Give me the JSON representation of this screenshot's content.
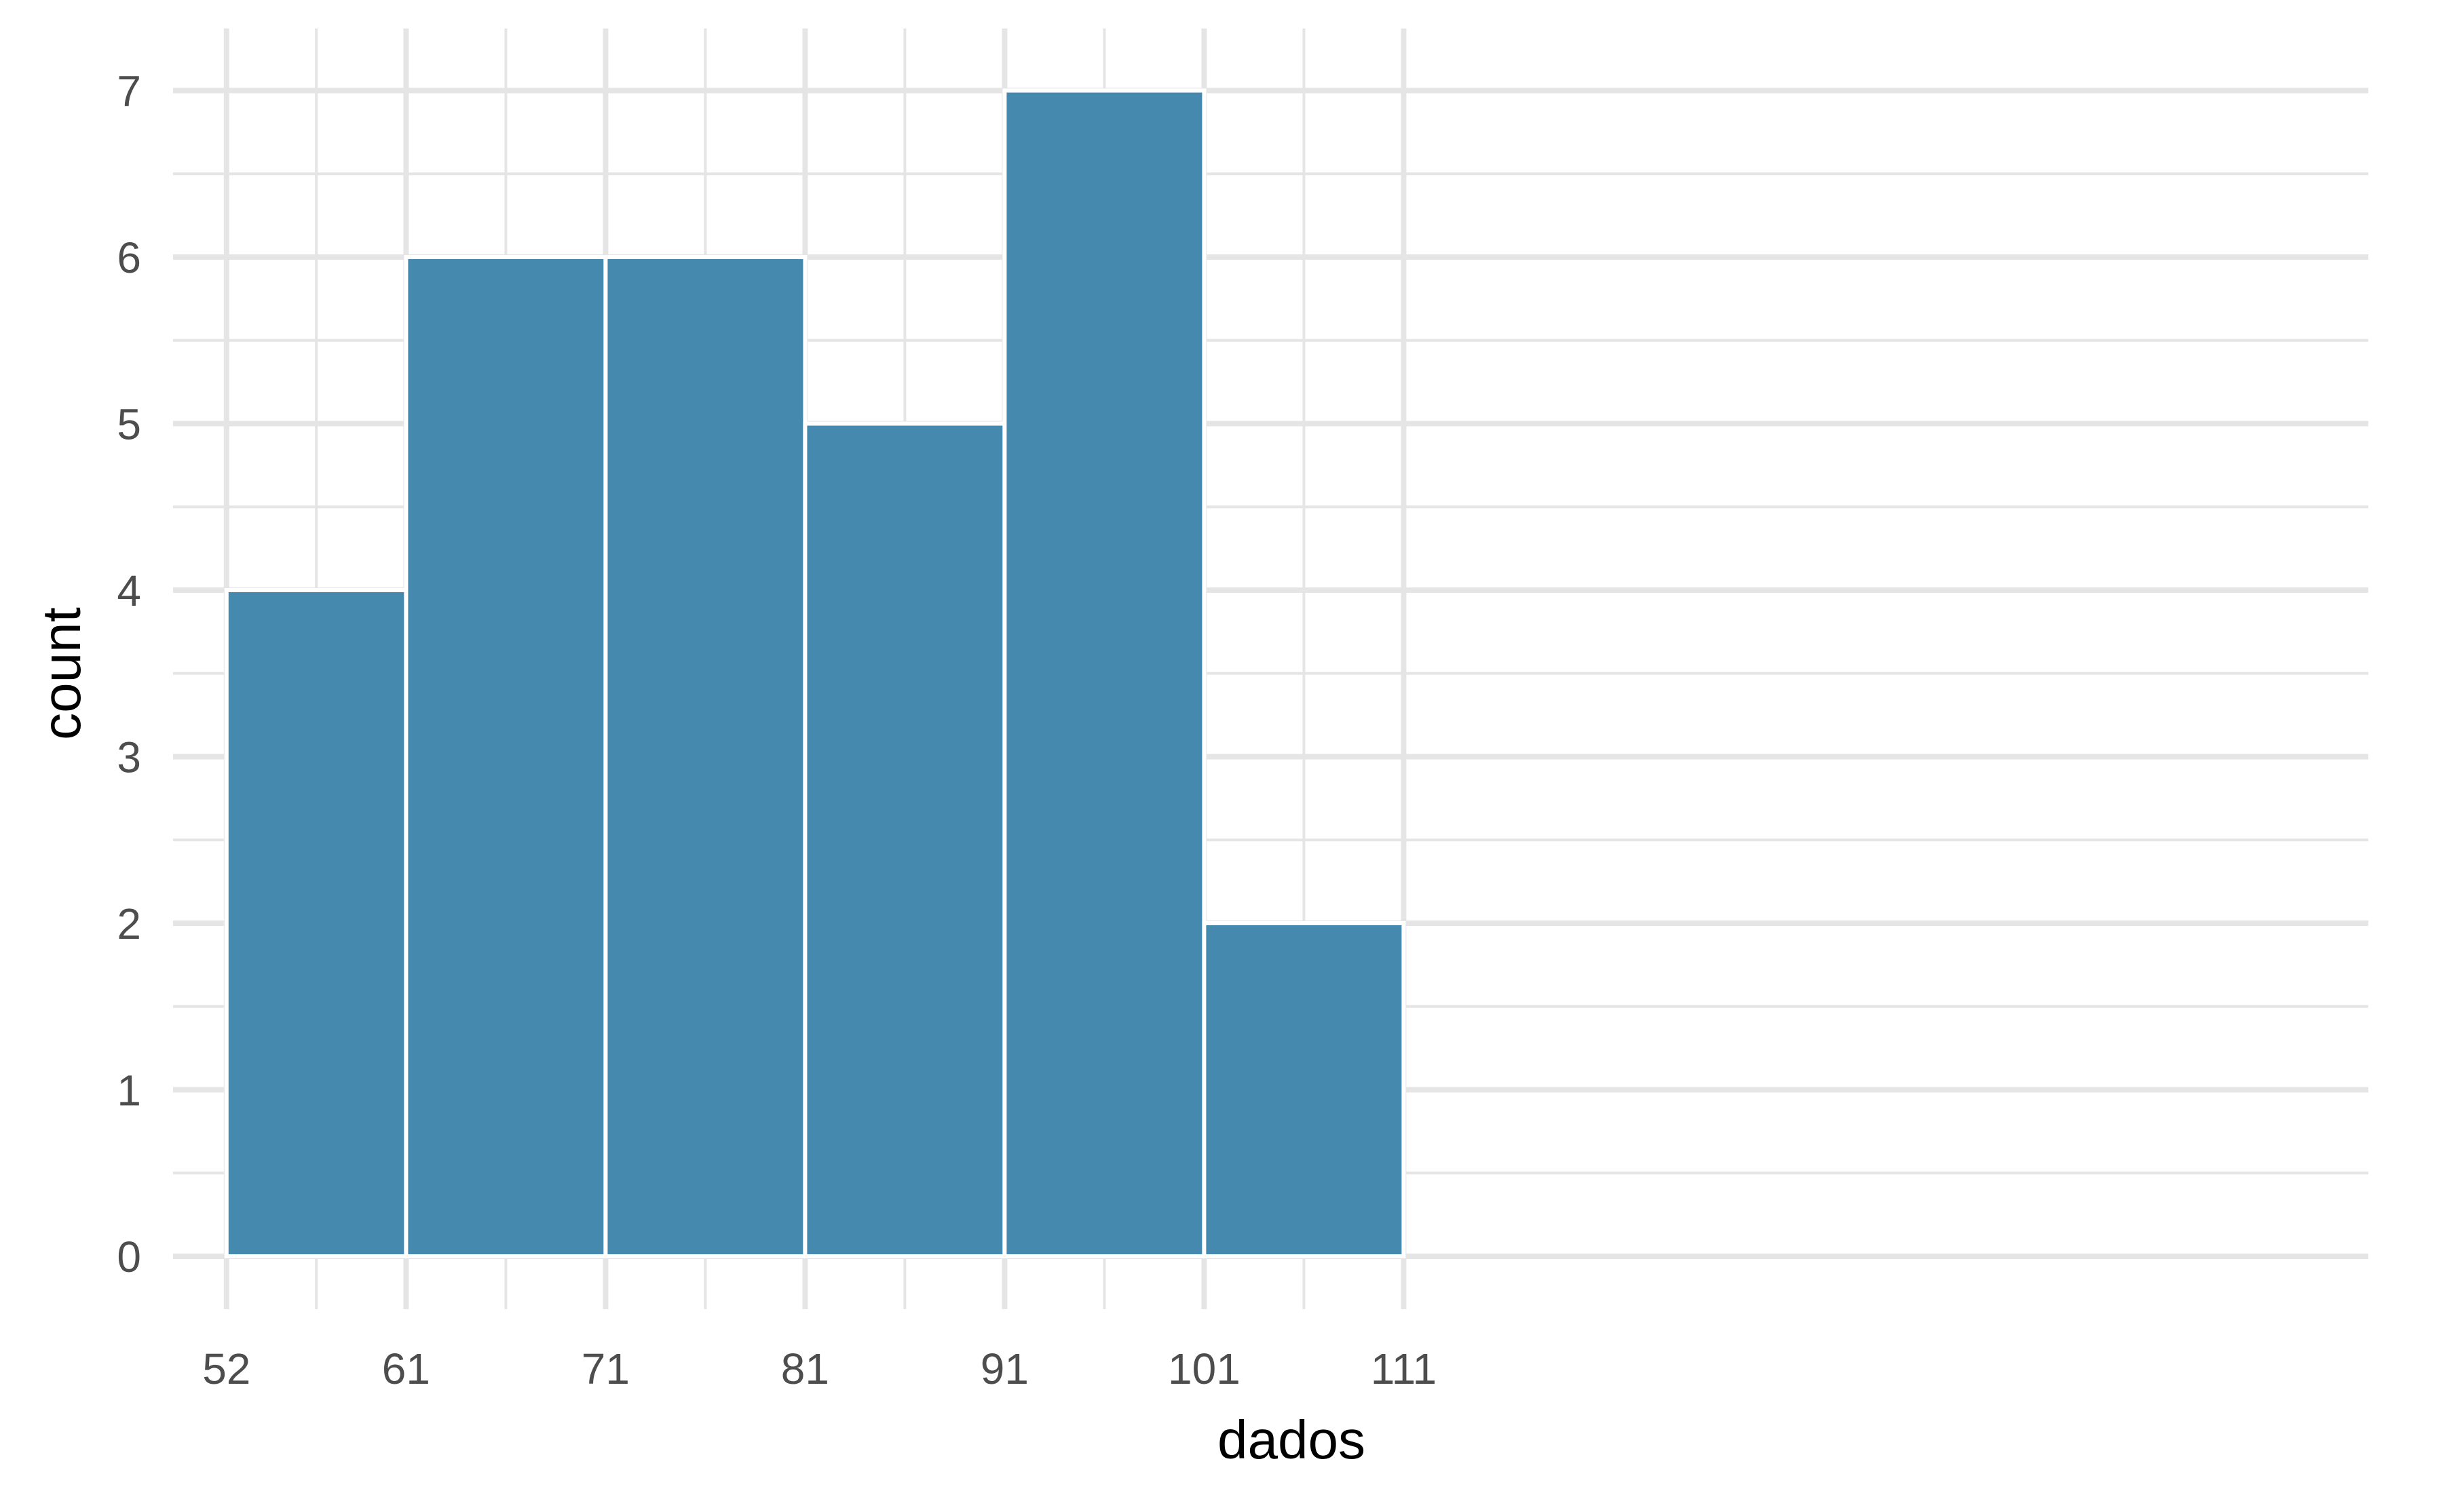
{
  "chart_data": {
    "type": "bar",
    "subtype": "histogram",
    "title": "",
    "xlabel": "dados",
    "ylabel": "count",
    "bins": [
      {
        "start": 52,
        "end": 61,
        "count": 4
      },
      {
        "start": 61,
        "end": 71,
        "count": 6
      },
      {
        "start": 71,
        "end": 81,
        "count": 6
      },
      {
        "start": 81,
        "end": 91,
        "count": 5
      },
      {
        "start": 91,
        "end": 101,
        "count": 7
      },
      {
        "start": 101,
        "end": 111,
        "count": 2
      }
    ],
    "x_ticks": [
      "52",
      "61",
      "71",
      "81",
      "91",
      "101",
      "111"
    ],
    "x_tick_values": [
      52,
      61,
      71,
      81,
      91,
      101,
      111
    ],
    "y_ticks": [
      "0",
      "1",
      "2",
      "3",
      "4",
      "5",
      "6",
      "7"
    ],
    "y_tick_values": [
      0,
      1,
      2,
      3,
      4,
      5,
      6,
      7
    ],
    "xlim": [
      49,
      112.5
    ],
    "ylim": [
      -0.35,
      7.35
    ],
    "grid": true,
    "legend": "none",
    "colors": {
      "bar_fill": "#4589AF",
      "bar_outline": "#ffffff",
      "grid": "#e5e5e5",
      "background": "#ffffff"
    }
  }
}
